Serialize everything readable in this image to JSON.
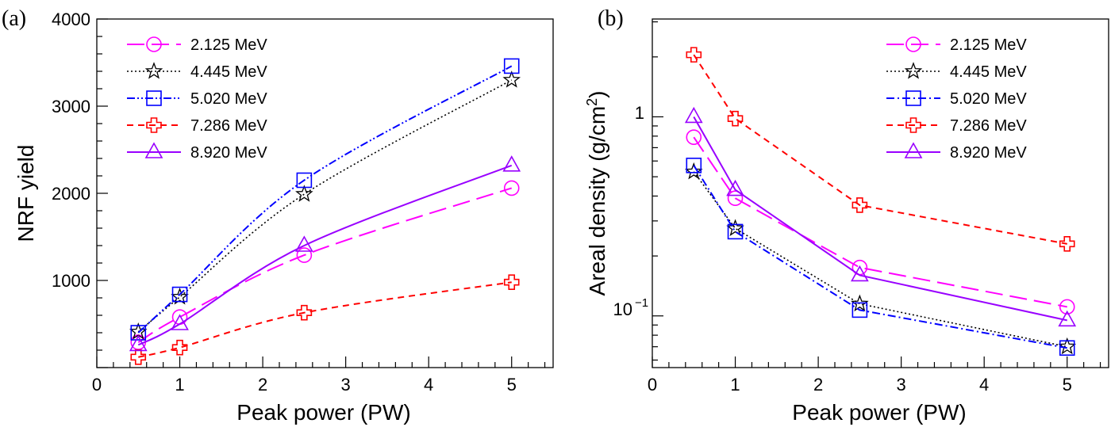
{
  "chart_data": [
    {
      "type": "line",
      "panel_label": "(a)",
      "xlabel": "Peak power (PW)",
      "ylabel": "NRF yield",
      "xlim": [
        0,
        5.5
      ],
      "ylim": [
        0,
        4000
      ],
      "x_ticks": [
        "0",
        "1",
        "2",
        "3",
        "4",
        "5"
      ],
      "y_ticks": [
        "1000",
        "2000",
        "3000",
        "4000"
      ],
      "x": [
        0.5,
        1,
        2.5,
        5
      ],
      "legend_position": "top-left",
      "grid": false,
      "series": [
        {
          "name": "2.125 MeV",
          "values": [
            290,
            580,
            1290,
            2060
          ],
          "color": "#ff00ff",
          "marker": "circle",
          "line": "longdash"
        },
        {
          "name": "4.445 MeV",
          "values": [
            410,
            810,
            1990,
            3300
          ],
          "color": "#000000",
          "marker": "star",
          "line": "dotted"
        },
        {
          "name": "5.020 MeV",
          "values": [
            400,
            840,
            2150,
            3460
          ],
          "color": "#0000ff",
          "marker": "square",
          "line": "dashdotdot"
        },
        {
          "name": "7.286 MeV",
          "values": [
            120,
            230,
            630,
            980
          ],
          "color": "#ff0000",
          "marker": "cross",
          "line": "dashed"
        },
        {
          "name": "8.920 MeV",
          "values": [
            260,
            500,
            1400,
            2320
          ],
          "color": "#9900ff",
          "marker": "triangle",
          "line": "solid"
        }
      ]
    },
    {
      "type": "line",
      "panel_label": "(b)",
      "xlabel": "Peak power (PW)",
      "ylabel": "Areal density (g/cm",
      "ylabel_sup": "2",
      "ylabel_close": ")",
      "y_scale": "log",
      "xlim": [
        0,
        5.5
      ],
      "ylim": [
        0.055,
        3.1
      ],
      "x_ticks": [
        "0",
        "1",
        "2",
        "3",
        "4",
        "5"
      ],
      "y_tick_1": "1",
      "y_tick_01_base": "10",
      "y_tick_01_exp": "−1",
      "x": [
        0.5,
        1,
        2.5,
        5
      ],
      "legend_position": "top-right",
      "grid": false,
      "series": [
        {
          "name": "2.125 MeV",
          "values": [
            0.79,
            0.39,
            0.175,
            0.111
          ],
          "color": "#ff00ff",
          "marker": "circle",
          "line": "longdash"
        },
        {
          "name": "4.445 MeV",
          "values": [
            0.53,
            0.275,
            0.115,
            0.07
          ],
          "color": "#000000",
          "marker": "star",
          "line": "dotted"
        },
        {
          "name": "5.020 MeV",
          "values": [
            0.57,
            0.265,
            0.107,
            0.069
          ],
          "color": "#0000ff",
          "marker": "square",
          "line": "dashdot"
        },
        {
          "name": "7.286 MeV",
          "values": [
            2.05,
            0.98,
            0.36,
            0.23
          ],
          "color": "#ff0000",
          "marker": "cross",
          "line": "dashed"
        },
        {
          "name": "8.920 MeV",
          "values": [
            1.0,
            0.43,
            0.16,
            0.095
          ],
          "color": "#9900ff",
          "marker": "triangle",
          "line": "solid"
        }
      ]
    }
  ]
}
